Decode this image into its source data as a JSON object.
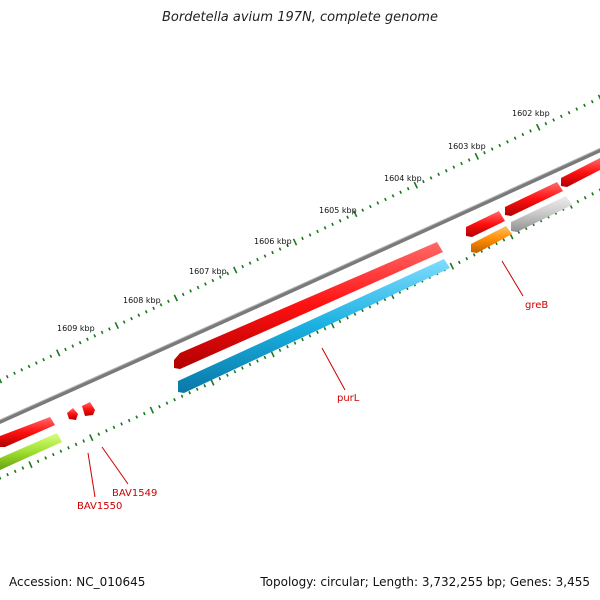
{
  "title": "Bordetella avium 197N, complete genome",
  "footer": {
    "accession": "Accession: NC_010645",
    "topology": "Topology: circular; Length: 3,732,255 bp; Genes: 3,455"
  },
  "kbp_labels": [
    "1602 kbp",
    "1603 kbp",
    "1604 kbp",
    "1605 kbp",
    "1606 kbp",
    "1607 kbp",
    "1608 kbp",
    "1609 kbp"
  ],
  "genes": [
    {
      "label": "greB",
      "color": "#ff8c00",
      "strand": "outer-lower"
    },
    {
      "label": "purL",
      "color": "#1ab0e0",
      "strand": "lower"
    },
    {
      "label": "BAV1549",
      "color": "#ff1010",
      "strand": "upper"
    },
    {
      "label": "BAV1550",
      "color": "#ff1010",
      "strand": "upper"
    }
  ],
  "colors": {
    "backbone": "#808080",
    "tick": "#1a7a1a",
    "red_gene": "#ff1010",
    "blue_gene": "#1ab0e0",
    "orange_gene": "#ff8c00",
    "grey_gene": "#c8c8c8",
    "green_gene": "#a0e030",
    "label": "#cc0000"
  }
}
